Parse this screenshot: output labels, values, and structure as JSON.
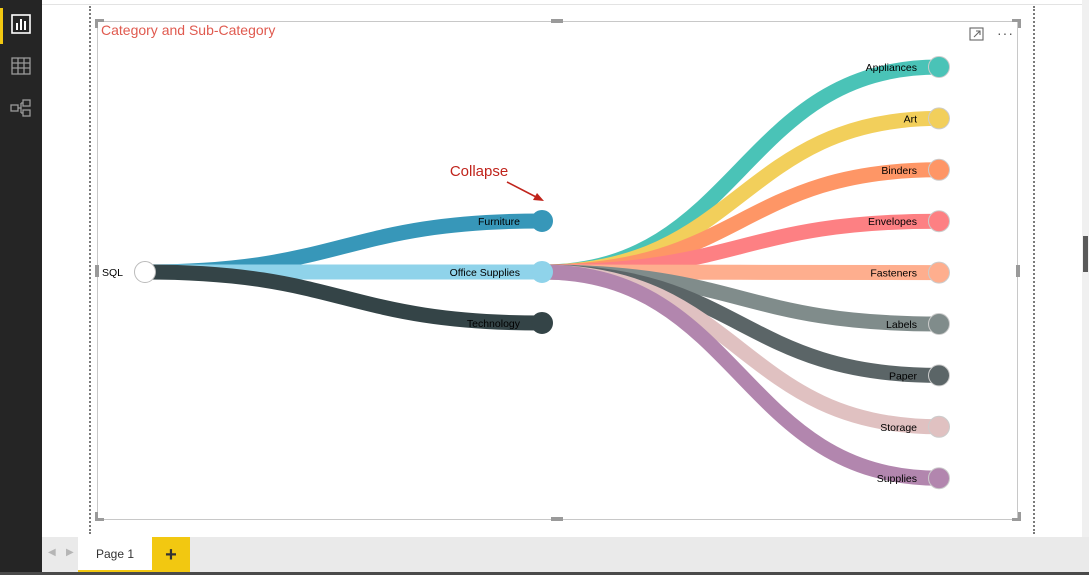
{
  "sidebar": {
    "items": [
      {
        "name": "report-view",
        "icon": "bar-chart-icon",
        "active": true
      },
      {
        "name": "data-view",
        "icon": "table-icon",
        "active": false
      },
      {
        "name": "relationships-view",
        "icon": "relationships-icon",
        "active": false
      }
    ]
  },
  "visual": {
    "title": "Category and Sub-Category",
    "focus_mode_icon": "focus-mode-icon",
    "more_options_label": "···"
  },
  "annotation": {
    "text": "Collapse",
    "color": "#c0241c"
  },
  "tree": {
    "root": {
      "label": "SQL",
      "color": "#ffffff"
    },
    "categories": [
      {
        "label": "Furniture",
        "color": "#3797b9"
      },
      {
        "label": "Office Supplies",
        "color": "#8fd3ea",
        "expanded": true
      },
      {
        "label": "Technology",
        "color": "#344447"
      }
    ],
    "subcategories": [
      {
        "label": "Appliances",
        "color": "#4ac3b7"
      },
      {
        "label": "Art",
        "color": "#f2cf5b"
      },
      {
        "label": "Binders",
        "color": "#fe9666"
      },
      {
        "label": "Envelopes",
        "color": "#fd8083"
      },
      {
        "label": "Fasteners",
        "color": "#feae8e"
      },
      {
        "label": "Labels",
        "color": "#808c8b"
      },
      {
        "label": "Paper",
        "color": "#5b6567"
      },
      {
        "label": "Storage",
        "color": "#e0c1c1"
      },
      {
        "label": "Supplies",
        "color": "#b286ae"
      }
    ]
  },
  "page_tabs": {
    "tabs": [
      {
        "label": "Page 1"
      }
    ],
    "add_label": "+"
  },
  "colors": {
    "accent": "#f2c811",
    "title": "#e05a4f"
  }
}
